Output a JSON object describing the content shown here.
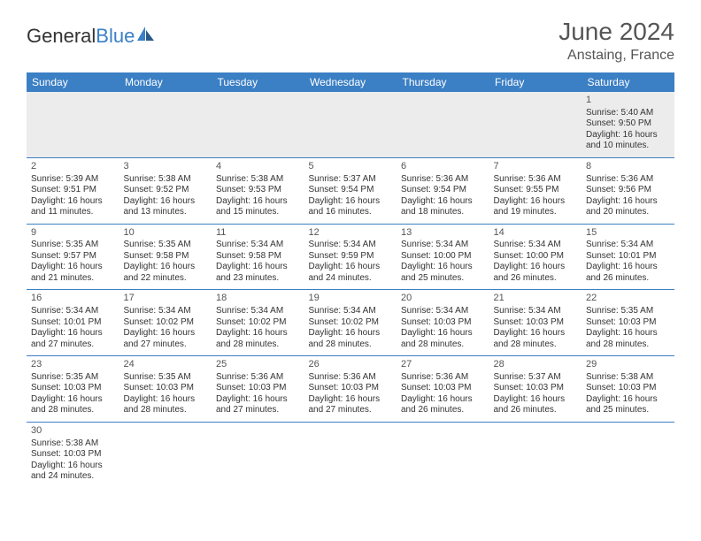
{
  "logo": {
    "text1": "General",
    "text2": "Blue"
  },
  "title": "June 2024",
  "location": "Anstaing, France",
  "colors": {
    "header_bg": "#3b7fc4",
    "header_text": "#ffffff",
    "shade_bg": "#ececec",
    "border": "#3b7fc4",
    "text": "#333333"
  },
  "dayHeaders": [
    "Sunday",
    "Monday",
    "Tuesday",
    "Wednesday",
    "Thursday",
    "Friday",
    "Saturday"
  ],
  "weeks": [
    [
      null,
      null,
      null,
      null,
      null,
      null,
      {
        "n": "1",
        "sr": "5:40 AM",
        "ss": "9:50 PM",
        "dl": "16 hours and 10 minutes."
      }
    ],
    [
      {
        "n": "2",
        "sr": "5:39 AM",
        "ss": "9:51 PM",
        "dl": "16 hours and 11 minutes."
      },
      {
        "n": "3",
        "sr": "5:38 AM",
        "ss": "9:52 PM",
        "dl": "16 hours and 13 minutes."
      },
      {
        "n": "4",
        "sr": "5:38 AM",
        "ss": "9:53 PM",
        "dl": "16 hours and 15 minutes."
      },
      {
        "n": "5",
        "sr": "5:37 AM",
        "ss": "9:54 PM",
        "dl": "16 hours and 16 minutes."
      },
      {
        "n": "6",
        "sr": "5:36 AM",
        "ss": "9:54 PM",
        "dl": "16 hours and 18 minutes."
      },
      {
        "n": "7",
        "sr": "5:36 AM",
        "ss": "9:55 PM",
        "dl": "16 hours and 19 minutes."
      },
      {
        "n": "8",
        "sr": "5:36 AM",
        "ss": "9:56 PM",
        "dl": "16 hours and 20 minutes."
      }
    ],
    [
      {
        "n": "9",
        "sr": "5:35 AM",
        "ss": "9:57 PM",
        "dl": "16 hours and 21 minutes."
      },
      {
        "n": "10",
        "sr": "5:35 AM",
        "ss": "9:58 PM",
        "dl": "16 hours and 22 minutes."
      },
      {
        "n": "11",
        "sr": "5:34 AM",
        "ss": "9:58 PM",
        "dl": "16 hours and 23 minutes."
      },
      {
        "n": "12",
        "sr": "5:34 AM",
        "ss": "9:59 PM",
        "dl": "16 hours and 24 minutes."
      },
      {
        "n": "13",
        "sr": "5:34 AM",
        "ss": "10:00 PM",
        "dl": "16 hours and 25 minutes."
      },
      {
        "n": "14",
        "sr": "5:34 AM",
        "ss": "10:00 PM",
        "dl": "16 hours and 26 minutes."
      },
      {
        "n": "15",
        "sr": "5:34 AM",
        "ss": "10:01 PM",
        "dl": "16 hours and 26 minutes."
      }
    ],
    [
      {
        "n": "16",
        "sr": "5:34 AM",
        "ss": "10:01 PM",
        "dl": "16 hours and 27 minutes."
      },
      {
        "n": "17",
        "sr": "5:34 AM",
        "ss": "10:02 PM",
        "dl": "16 hours and 27 minutes."
      },
      {
        "n": "18",
        "sr": "5:34 AM",
        "ss": "10:02 PM",
        "dl": "16 hours and 28 minutes."
      },
      {
        "n": "19",
        "sr": "5:34 AM",
        "ss": "10:02 PM",
        "dl": "16 hours and 28 minutes."
      },
      {
        "n": "20",
        "sr": "5:34 AM",
        "ss": "10:03 PM",
        "dl": "16 hours and 28 minutes."
      },
      {
        "n": "21",
        "sr": "5:34 AM",
        "ss": "10:03 PM",
        "dl": "16 hours and 28 minutes."
      },
      {
        "n": "22",
        "sr": "5:35 AM",
        "ss": "10:03 PM",
        "dl": "16 hours and 28 minutes."
      }
    ],
    [
      {
        "n": "23",
        "sr": "5:35 AM",
        "ss": "10:03 PM",
        "dl": "16 hours and 28 minutes."
      },
      {
        "n": "24",
        "sr": "5:35 AM",
        "ss": "10:03 PM",
        "dl": "16 hours and 28 minutes."
      },
      {
        "n": "25",
        "sr": "5:36 AM",
        "ss": "10:03 PM",
        "dl": "16 hours and 27 minutes."
      },
      {
        "n": "26",
        "sr": "5:36 AM",
        "ss": "10:03 PM",
        "dl": "16 hours and 27 minutes."
      },
      {
        "n": "27",
        "sr": "5:36 AM",
        "ss": "10:03 PM",
        "dl": "16 hours and 26 minutes."
      },
      {
        "n": "28",
        "sr": "5:37 AM",
        "ss": "10:03 PM",
        "dl": "16 hours and 26 minutes."
      },
      {
        "n": "29",
        "sr": "5:38 AM",
        "ss": "10:03 PM",
        "dl": "16 hours and 25 minutes."
      }
    ],
    [
      {
        "n": "30",
        "sr": "5:38 AM",
        "ss": "10:03 PM",
        "dl": "16 hours and 24 minutes."
      },
      null,
      null,
      null,
      null,
      null,
      null
    ]
  ],
  "labels": {
    "sunrise": "Sunrise: ",
    "sunset": "Sunset: ",
    "daylight": "Daylight: "
  }
}
